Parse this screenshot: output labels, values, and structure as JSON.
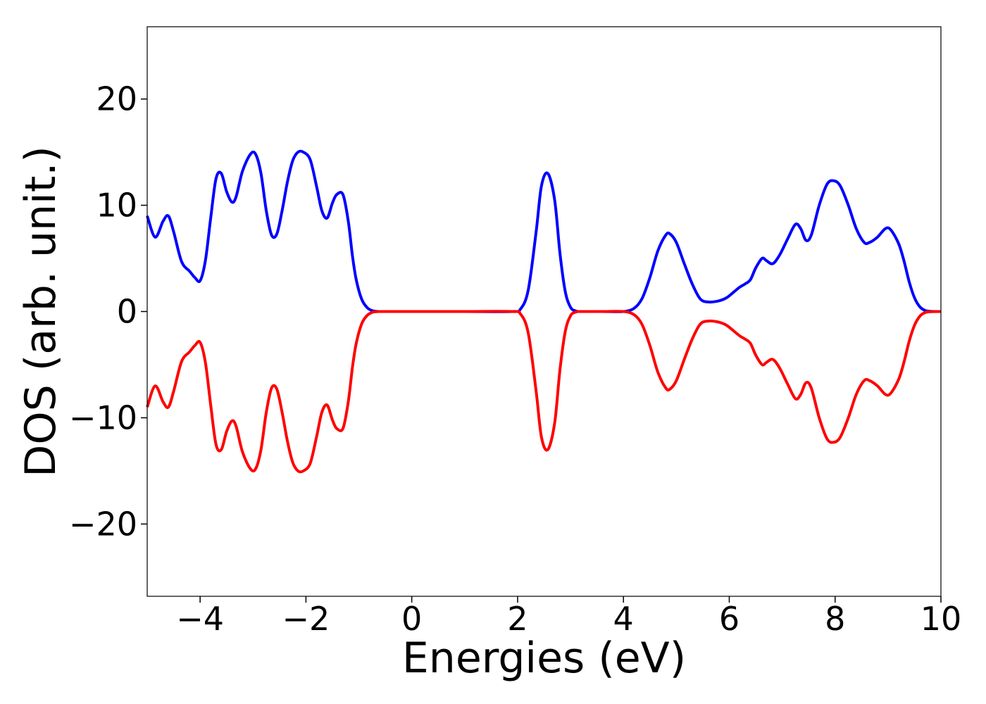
{
  "chart_data": {
    "type": "line",
    "title": "",
    "xlabel": "Energies (eV)",
    "ylabel": "DOS (arb. unit.)",
    "xlim": [
      -5,
      10
    ],
    "ylim": [
      -26.8,
      26.8
    ],
    "xticks": [
      -4,
      -2,
      0,
      2,
      4,
      6,
      8,
      10
    ],
    "xtick_labels": [
      "−4",
      "−2",
      "0",
      "2",
      "4",
      "6",
      "8",
      "10"
    ],
    "yticks": [
      -20,
      -10,
      0,
      10,
      20
    ],
    "ytick_labels": [
      "−20",
      "−10",
      "0",
      "10",
      "20"
    ],
    "grid": false,
    "legend": false,
    "series": [
      {
        "color": "#0000ff",
        "x": [
          -5.0,
          -4.85,
          -4.7,
          -4.6,
          -4.5,
          -4.35,
          -4.2,
          -4.1,
          -4.0,
          -3.9,
          -3.8,
          -3.7,
          -3.6,
          -3.5,
          -3.4,
          -3.32,
          -3.2,
          -3.05,
          -2.95,
          -2.85,
          -2.75,
          -2.65,
          -2.55,
          -2.45,
          -2.35,
          -2.25,
          -2.15,
          -2.05,
          -1.92,
          -1.8,
          -1.7,
          -1.6,
          -1.5,
          -1.42,
          -1.3,
          -1.2,
          -1.12,
          -1.05,
          -0.95,
          -0.85,
          -0.75,
          -0.65,
          -0.55,
          0.0,
          1.0,
          1.9,
          2.05,
          2.2,
          2.35,
          2.45,
          2.57,
          2.7,
          2.8,
          2.9,
          3.0,
          3.1,
          3.2,
          3.6,
          4.0,
          4.2,
          4.35,
          4.5,
          4.65,
          4.8,
          4.88,
          5.0,
          5.15,
          5.3,
          5.45,
          5.6,
          5.8,
          5.95,
          6.1,
          6.2,
          6.3,
          6.4,
          6.5,
          6.62,
          6.7,
          6.82,
          6.95,
          7.1,
          7.25,
          7.35,
          7.45,
          7.55,
          7.7,
          7.85,
          7.98,
          8.1,
          8.25,
          8.4,
          8.55,
          8.65,
          8.8,
          8.95,
          9.05,
          9.2,
          9.3,
          9.4,
          9.5,
          9.6,
          9.7,
          9.8,
          10.0
        ],
        "y": [
          9.0,
          7.0,
          8.5,
          9.0,
          7.5,
          4.7,
          3.8,
          3.2,
          2.9,
          4.8,
          8.8,
          12.5,
          13.0,
          11.3,
          10.3,
          10.8,
          13.2,
          14.8,
          14.8,
          13.0,
          9.5,
          7.2,
          7.3,
          9.5,
          12.2,
          14.2,
          15.0,
          15.0,
          14.3,
          11.8,
          9.5,
          8.8,
          10.2,
          11.0,
          11.0,
          8.5,
          5.2,
          3.0,
          1.2,
          0.4,
          0.08,
          0.01,
          0.0,
          0.0,
          0.0,
          0.0,
          0.2,
          2.0,
          7.5,
          11.8,
          13.0,
          10.5,
          5.5,
          1.9,
          0.4,
          0.05,
          0.0,
          0.0,
          0.0,
          0.3,
          1.2,
          3.2,
          5.7,
          7.2,
          7.3,
          6.5,
          4.5,
          2.6,
          1.2,
          0.9,
          1.0,
          1.3,
          1.9,
          2.3,
          2.6,
          3.0,
          4.1,
          5.0,
          4.8,
          4.5,
          5.3,
          6.8,
          8.2,
          7.8,
          6.7,
          7.2,
          10.0,
          12.0,
          12.3,
          11.8,
          10.0,
          7.8,
          6.5,
          6.5,
          7.0,
          7.8,
          7.7,
          6.4,
          4.8,
          2.8,
          1.3,
          0.45,
          0.1,
          0.02,
          0.0
        ]
      },
      {
        "color": "#ff0000",
        "x": [
          -5.0,
          -4.85,
          -4.7,
          -4.6,
          -4.5,
          -4.35,
          -4.2,
          -4.1,
          -4.0,
          -3.9,
          -3.8,
          -3.7,
          -3.6,
          -3.5,
          -3.4,
          -3.32,
          -3.2,
          -3.05,
          -2.95,
          -2.85,
          -2.75,
          -2.65,
          -2.55,
          -2.45,
          -2.35,
          -2.25,
          -2.15,
          -2.05,
          -1.92,
          -1.8,
          -1.7,
          -1.6,
          -1.5,
          -1.42,
          -1.3,
          -1.2,
          -1.12,
          -1.05,
          -0.95,
          -0.85,
          -0.75,
          -0.65,
          -0.55,
          0.0,
          1.0,
          1.9,
          2.05,
          2.2,
          2.35,
          2.45,
          2.57,
          2.7,
          2.8,
          2.9,
          3.0,
          3.1,
          3.2,
          3.6,
          4.0,
          4.2,
          4.35,
          4.5,
          4.65,
          4.8,
          4.88,
          5.0,
          5.15,
          5.3,
          5.45,
          5.6,
          5.8,
          5.95,
          6.1,
          6.2,
          6.3,
          6.4,
          6.5,
          6.62,
          6.7,
          6.82,
          6.95,
          7.1,
          7.25,
          7.35,
          7.45,
          7.55,
          7.7,
          7.85,
          7.98,
          8.1,
          8.25,
          8.4,
          8.55,
          8.65,
          8.8,
          8.95,
          9.05,
          9.2,
          9.3,
          9.4,
          9.5,
          9.6,
          9.7,
          9.8,
          10.0
        ],
        "y": [
          -9.0,
          -7.0,
          -8.5,
          -9.0,
          -7.5,
          -4.7,
          -3.8,
          -3.2,
          -2.9,
          -4.8,
          -8.8,
          -12.5,
          -13.0,
          -11.3,
          -10.3,
          -10.8,
          -13.2,
          -14.8,
          -14.8,
          -13.0,
          -9.5,
          -7.2,
          -7.3,
          -9.5,
          -12.2,
          -14.2,
          -15.0,
          -15.0,
          -14.3,
          -11.8,
          -9.5,
          -8.8,
          -10.2,
          -11.0,
          -11.0,
          -8.5,
          -5.2,
          -3.0,
          -1.2,
          -0.4,
          -0.08,
          -0.01,
          0.0,
          0.0,
          0.0,
          0.0,
          -0.2,
          -2.0,
          -7.5,
          -11.8,
          -13.0,
          -10.5,
          -5.5,
          -1.9,
          -0.4,
          -0.05,
          0.0,
          0.0,
          0.0,
          -0.3,
          -1.2,
          -3.2,
          -5.7,
          -7.2,
          -7.3,
          -6.5,
          -4.5,
          -2.6,
          -1.2,
          -0.9,
          -1.0,
          -1.3,
          -1.9,
          -2.3,
          -2.6,
          -3.0,
          -4.1,
          -5.0,
          -4.8,
          -4.5,
          -5.3,
          -6.8,
          -8.2,
          -7.8,
          -6.7,
          -7.2,
          -10.0,
          -12.0,
          -12.3,
          -11.8,
          -10.0,
          -7.8,
          -6.5,
          -6.5,
          -7.0,
          -7.8,
          -7.7,
          -6.4,
          -4.8,
          -2.8,
          -1.3,
          -0.45,
          -0.1,
          -0.02,
          0.0
        ]
      }
    ]
  }
}
